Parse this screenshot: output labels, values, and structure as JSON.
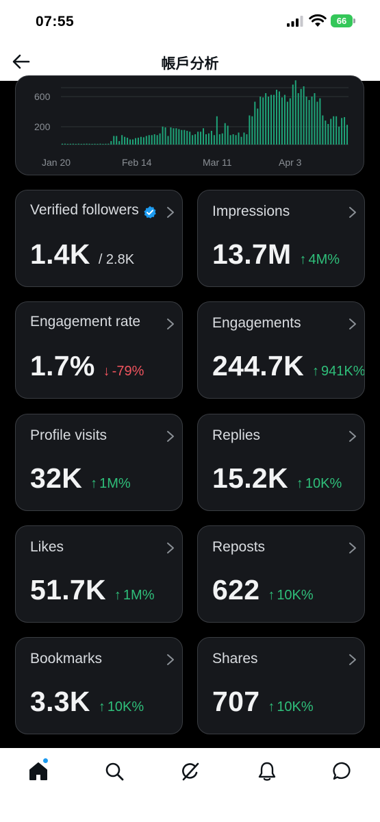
{
  "status_bar": {
    "time": "07:55",
    "battery_level": "66",
    "icons": [
      "signal-icon",
      "wifi-icon",
      "battery-icon"
    ]
  },
  "header": {
    "title": "帳戶分析",
    "back_icon": "arrow-left-icon"
  },
  "chart_data": {
    "type": "bar",
    "yticks": [
      "600",
      "200"
    ],
    "xticks": [
      "Jan 20",
      "Feb 14",
      "Mar 11",
      "Apr 3"
    ],
    "values": [
      10,
      10,
      8,
      9,
      10,
      7,
      10,
      8,
      9,
      10,
      9,
      8,
      9,
      7,
      10,
      8,
      9,
      10,
      40,
      100,
      100,
      40,
      110,
      90,
      80,
      60,
      60,
      75,
      80,
      90,
      85,
      100,
      110,
      110,
      120,
      110,
      130,
      210,
      200,
      100,
      200,
      190,
      190,
      180,
      170,
      170,
      160,
      150,
      110,
      120,
      150,
      150,
      190,
      120,
      130,
      160,
      110,
      330,
      120,
      130,
      250,
      220,
      110,
      120,
      110,
      140,
      90,
      140,
      120,
      340,
      330,
      500,
      420,
      560,
      550,
      600,
      560,
      580,
      580,
      640,
      620,
      550,
      580,
      500,
      540,
      700,
      750,
      600,
      650,
      680,
      560,
      520,
      560,
      600,
      500,
      540,
      340,
      280,
      240,
      300,
      330,
      330,
      210,
      310,
      320,
      230
    ],
    "ylim": [
      0,
      760
    ],
    "bar_color": "#1fa67a"
  },
  "metrics": [
    {
      "label": "Verified followers",
      "value": "1.4K",
      "sub": "/ 2.8K",
      "verified_icon": "verified-badge-icon"
    },
    {
      "label": "Impressions",
      "value": "13.7M",
      "change": "4M%",
      "direction": "up"
    },
    {
      "label": "Engagement rate",
      "value": "1.7%",
      "change": "-79%",
      "direction": "down"
    },
    {
      "label": "Engagements",
      "value": "244.7K",
      "change": "941K%",
      "direction": "up"
    },
    {
      "label": "Profile visits",
      "value": "32K",
      "change": "1M%",
      "direction": "up"
    },
    {
      "label": "Replies",
      "value": "15.2K",
      "change": "10K%",
      "direction": "up"
    },
    {
      "label": "Likes",
      "value": "51.7K",
      "change": "1M%",
      "direction": "up"
    },
    {
      "label": "Reposts",
      "value": "622",
      "change": "10K%",
      "direction": "up"
    },
    {
      "label": "Bookmarks",
      "value": "3.3K",
      "change": "10K%",
      "direction": "up"
    },
    {
      "label": "Shares",
      "value": "707",
      "change": "10K%",
      "direction": "up"
    }
  ],
  "colors": {
    "up": "#2fbf7a",
    "down": "#f0545e",
    "card_bg": "#16181c",
    "card_border": "#3a3d42",
    "accent": "#1d9bf0"
  },
  "tab_bar": {
    "tabs": [
      "home-icon",
      "search-icon",
      "grok-icon",
      "notifications-icon",
      "messages-icon"
    ]
  }
}
